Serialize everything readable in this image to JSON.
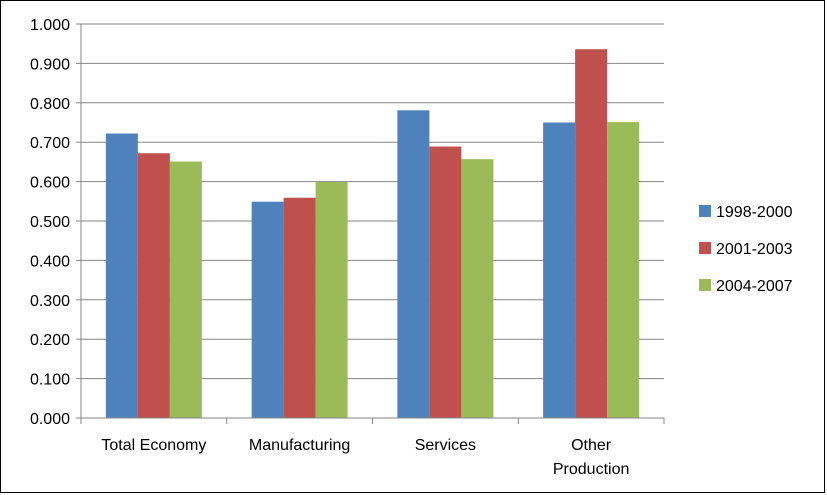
{
  "chart_data": {
    "type": "bar",
    "title": "",
    "xlabel": "",
    "ylabel": "",
    "categories": [
      "Total Economy",
      "Manufacturing",
      "Services",
      "Other Production"
    ],
    "category_lines": [
      [
        "Total Economy"
      ],
      [
        "Manufacturing"
      ],
      [
        "Services"
      ],
      [
        "Other",
        "Production"
      ]
    ],
    "series": [
      {
        "name": "1998-2000",
        "color": "#4F81BD",
        "values": [
          0.722,
          0.549,
          0.781,
          0.75
        ]
      },
      {
        "name": "2001-2003",
        "color": "#C0504D",
        "values": [
          0.672,
          0.559,
          0.689,
          0.936
        ]
      },
      {
        "name": "2004-2007",
        "color": "#9BBB59",
        "values": [
          0.651,
          0.599,
          0.657,
          0.751
        ]
      }
    ],
    "ylim": [
      0,
      1.0
    ],
    "yticks": [
      "0.000",
      "0.100",
      "0.200",
      "0.300",
      "0.400",
      "0.500",
      "0.600",
      "0.700",
      "0.800",
      "0.900",
      "1.000"
    ],
    "grid": true,
    "legend_position": "right"
  }
}
